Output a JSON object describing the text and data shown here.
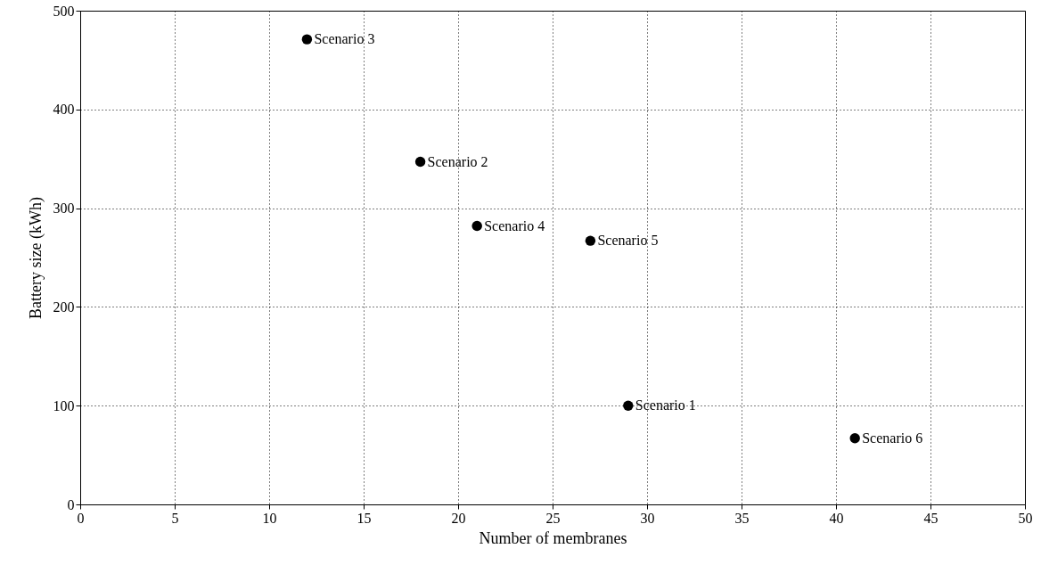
{
  "chart_data": {
    "type": "scatter",
    "xlabel": "Number of membranes",
    "ylabel": "Battery size (kWh)",
    "x": [
      12,
      18,
      21,
      27,
      29,
      41
    ],
    "series": [
      {
        "color": "#000000",
        "values": [
          471,
          347,
          282,
          267,
          100,
          67
        ]
      }
    ],
    "xlim": [
      0,
      50
    ],
    "xticks": [
      0,
      5,
      10,
      15,
      20,
      25,
      30,
      35,
      40,
      45,
      50
    ],
    "ylim": [
      0,
      500
    ],
    "yticks": [
      0,
      100,
      200,
      300,
      400,
      500
    ],
    "grid": true,
    "marker": "circle",
    "annotations": [
      {
        "text": "Scenario 3",
        "x": 12,
        "y": 471
      },
      {
        "text": "Scenario 2",
        "x": 18,
        "y": 347
      },
      {
        "text": "Scenario 4",
        "x": 21,
        "y": 282
      },
      {
        "text": "Scenario 5",
        "x": 27,
        "y": 267
      },
      {
        "text": "Scenario 1",
        "x": 29,
        "y": 100
      },
      {
        "text": "Scenario 6",
        "x": 41,
        "y": 67
      }
    ]
  }
}
